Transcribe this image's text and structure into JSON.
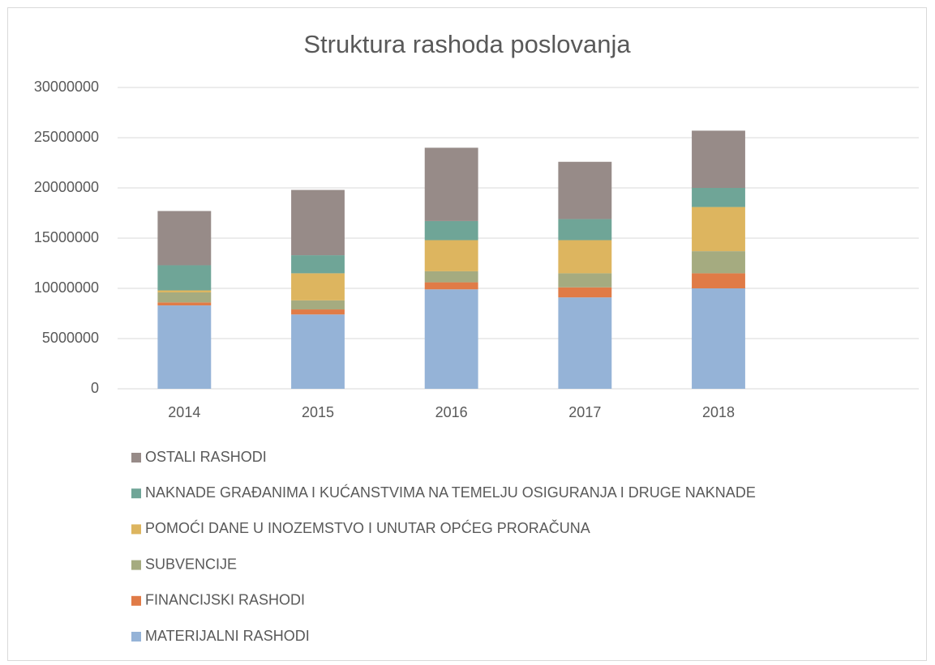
{
  "chart_data": {
    "type": "stacked_bar",
    "title": "Struktura rashoda poslovanja",
    "categories": [
      "2014",
      "2015",
      "2016",
      "2017",
      "2018",
      null
    ],
    "series": [
      {
        "name": "MATERIJALNI RASHODI",
        "color": "#95b3d7",
        "values": [
          8300000,
          7400000,
          9900000,
          9100000,
          10000000,
          null
        ]
      },
      {
        "name": "FINANCIJSKI RASHODI",
        "color": "#e07b47",
        "values": [
          300000,
          500000,
          700000,
          1000000,
          1500000,
          null
        ]
      },
      {
        "name": "SUBVENCIJE",
        "color": "#a5ab80",
        "values": [
          1000000,
          900000,
          1100000,
          1400000,
          2200000,
          null
        ]
      },
      {
        "name": "POMOĆI DANE U INOZEMSTVO I UNUTAR OPĆEG PRORAČUNA",
        "color": "#ddb55f",
        "values": [
          200000,
          2700000,
          3100000,
          3300000,
          4400000,
          null
        ]
      },
      {
        "name": "NAKNADE GRAĐANIMA I KUĆANSTVIMA NA TEMELJU OSIGURANJA I DRUGE NAKNADE",
        "color": "#6fa597",
        "values": [
          2500000,
          1800000,
          1900000,
          2100000,
          1900000,
          null
        ]
      },
      {
        "name": "OSTALI RASHODI",
        "color": "#978b88",
        "values": [
          5400000,
          6500000,
          7300000,
          5700000,
          5700000,
          null
        ]
      }
    ],
    "ylim": [
      0,
      30000000
    ],
    "yticks": [
      0,
      5000000,
      10000000,
      15000000,
      20000000,
      25000000,
      30000000
    ],
    "grid": true,
    "legend": "bottom"
  }
}
